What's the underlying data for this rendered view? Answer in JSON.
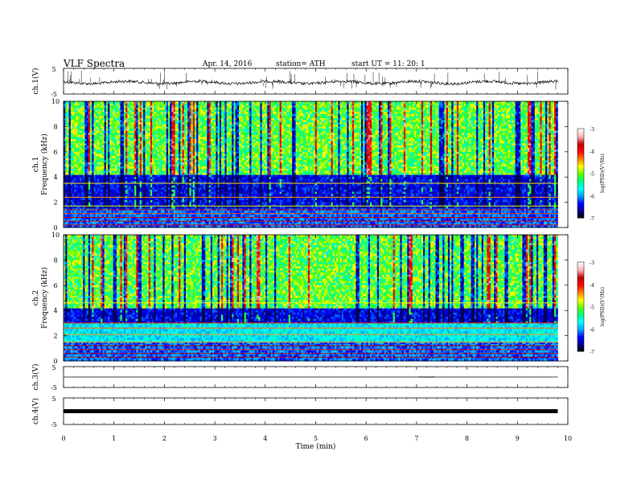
{
  "header": {
    "title": "VLF Spectra",
    "date": "Apr. 14, 2016",
    "station": "station= ATH",
    "start": "start  UT =    11: 20: 1"
  },
  "colors": {
    "colormap": [
      "#000000",
      "#00008c",
      "#0000ff",
      "#00a0ff",
      "#00ffff",
      "#00ff80",
      "#60ff00",
      "#ffff00",
      "#ff8000",
      "#ff0000",
      "#c00000",
      "#ffb0b0",
      "#ffffff"
    ],
    "trace": "#000000"
  },
  "chart_data": [
    {
      "id": "ch1-waveform",
      "type": "line",
      "ylabel": "ch.1(V)",
      "yticks": [
        "5",
        "-5"
      ],
      "ylim": [
        -5,
        5
      ],
      "xlim": [
        0,
        10
      ],
      "series": [
        {
          "x": [
            0,
            9.8
          ],
          "values": [
            -0.5,
            -0.5
          ]
        }
      ],
      "grid": false
    },
    {
      "id": "ch1-spectrogram",
      "type": "heatmap",
      "channel_label": "ch.1",
      "ylabel": "Frequency (kHz)",
      "yticks": [
        "0",
        "2",
        "4",
        "6",
        "8",
        "10"
      ],
      "ylim": [
        0,
        10
      ],
      "xlim": [
        0,
        10
      ],
      "data_end_min": 9.8,
      "colorbar": {
        "label": "log(PSD)(V²/Hz)",
        "ticks": [
          "-3",
          "-4",
          "-5",
          "-6",
          "-7"
        ],
        "range": [
          -7,
          -3
        ]
      }
    },
    {
      "id": "ch2-spectrogram",
      "type": "heatmap",
      "channel_label": "ch.2",
      "ylabel": "Frequency (kHz)",
      "yticks": [
        "0",
        "2",
        "4",
        "6",
        "8",
        "10"
      ],
      "ylim": [
        0,
        10
      ],
      "xlim": [
        0,
        10
      ],
      "data_end_min": 9.8,
      "colorbar": {
        "label": "log(PSD)(V²/Hz)",
        "ticks": [
          "-3",
          "-4",
          "-5",
          "-6",
          "-7"
        ],
        "range": [
          -7,
          -3
        ]
      }
    },
    {
      "id": "ch3-waveform",
      "type": "line",
      "ylabel": "ch.3(V)",
      "yticks": [
        "5",
        "-5"
      ],
      "ylim": [
        -5,
        5
      ],
      "xlim": [
        0,
        10
      ],
      "series": [
        {
          "x": [
            0,
            9.8
          ],
          "values": [
            0,
            0
          ]
        }
      ]
    },
    {
      "id": "ch4-waveform",
      "type": "line",
      "ylabel": "ch.4(V)",
      "yticks": [
        "5",
        "-5"
      ],
      "ylim": [
        -5,
        5
      ],
      "xlim": [
        0,
        10
      ],
      "series": [
        {
          "x": [
            0,
            9.8
          ],
          "values": [
            0,
            0
          ]
        }
      ]
    }
  ],
  "x_axis": {
    "label": "Time (min)",
    "ticks": [
      "0",
      "1",
      "2",
      "3",
      "4",
      "5",
      "6",
      "7",
      "8",
      "9",
      "10"
    ]
  }
}
